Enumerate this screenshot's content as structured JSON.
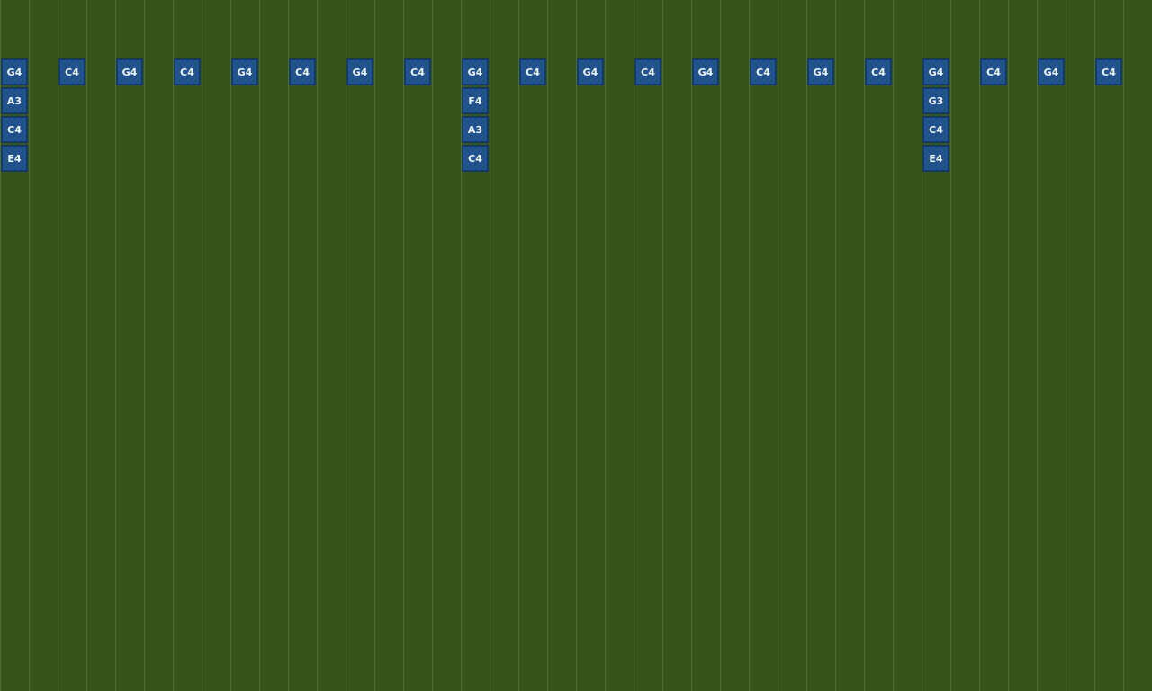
{
  "colors": {
    "background": "#37521a",
    "grid_line": "#4d6b35",
    "tile": "#1e4f88",
    "tile_border": "#143a6a"
  },
  "steps": [
    [
      "G4",
      "A3",
      "C4",
      "E4"
    ],
    [
      "C4"
    ],
    [
      "G4"
    ],
    [
      "C4"
    ],
    [
      "G4"
    ],
    [
      "C4"
    ],
    [
      "G4"
    ],
    [
      "C4"
    ],
    [
      "G4",
      "F4",
      "A3",
      "C4"
    ],
    [
      "C4"
    ],
    [
      "G4"
    ],
    [
      "C4"
    ],
    [
      "G4"
    ],
    [
      "C4"
    ],
    [
      "G4"
    ],
    [
      "C4"
    ],
    [
      "G4",
      "G3",
      "C4",
      "E4"
    ],
    [
      "C4"
    ],
    [
      "G4"
    ],
    [
      "C4"
    ]
  ]
}
